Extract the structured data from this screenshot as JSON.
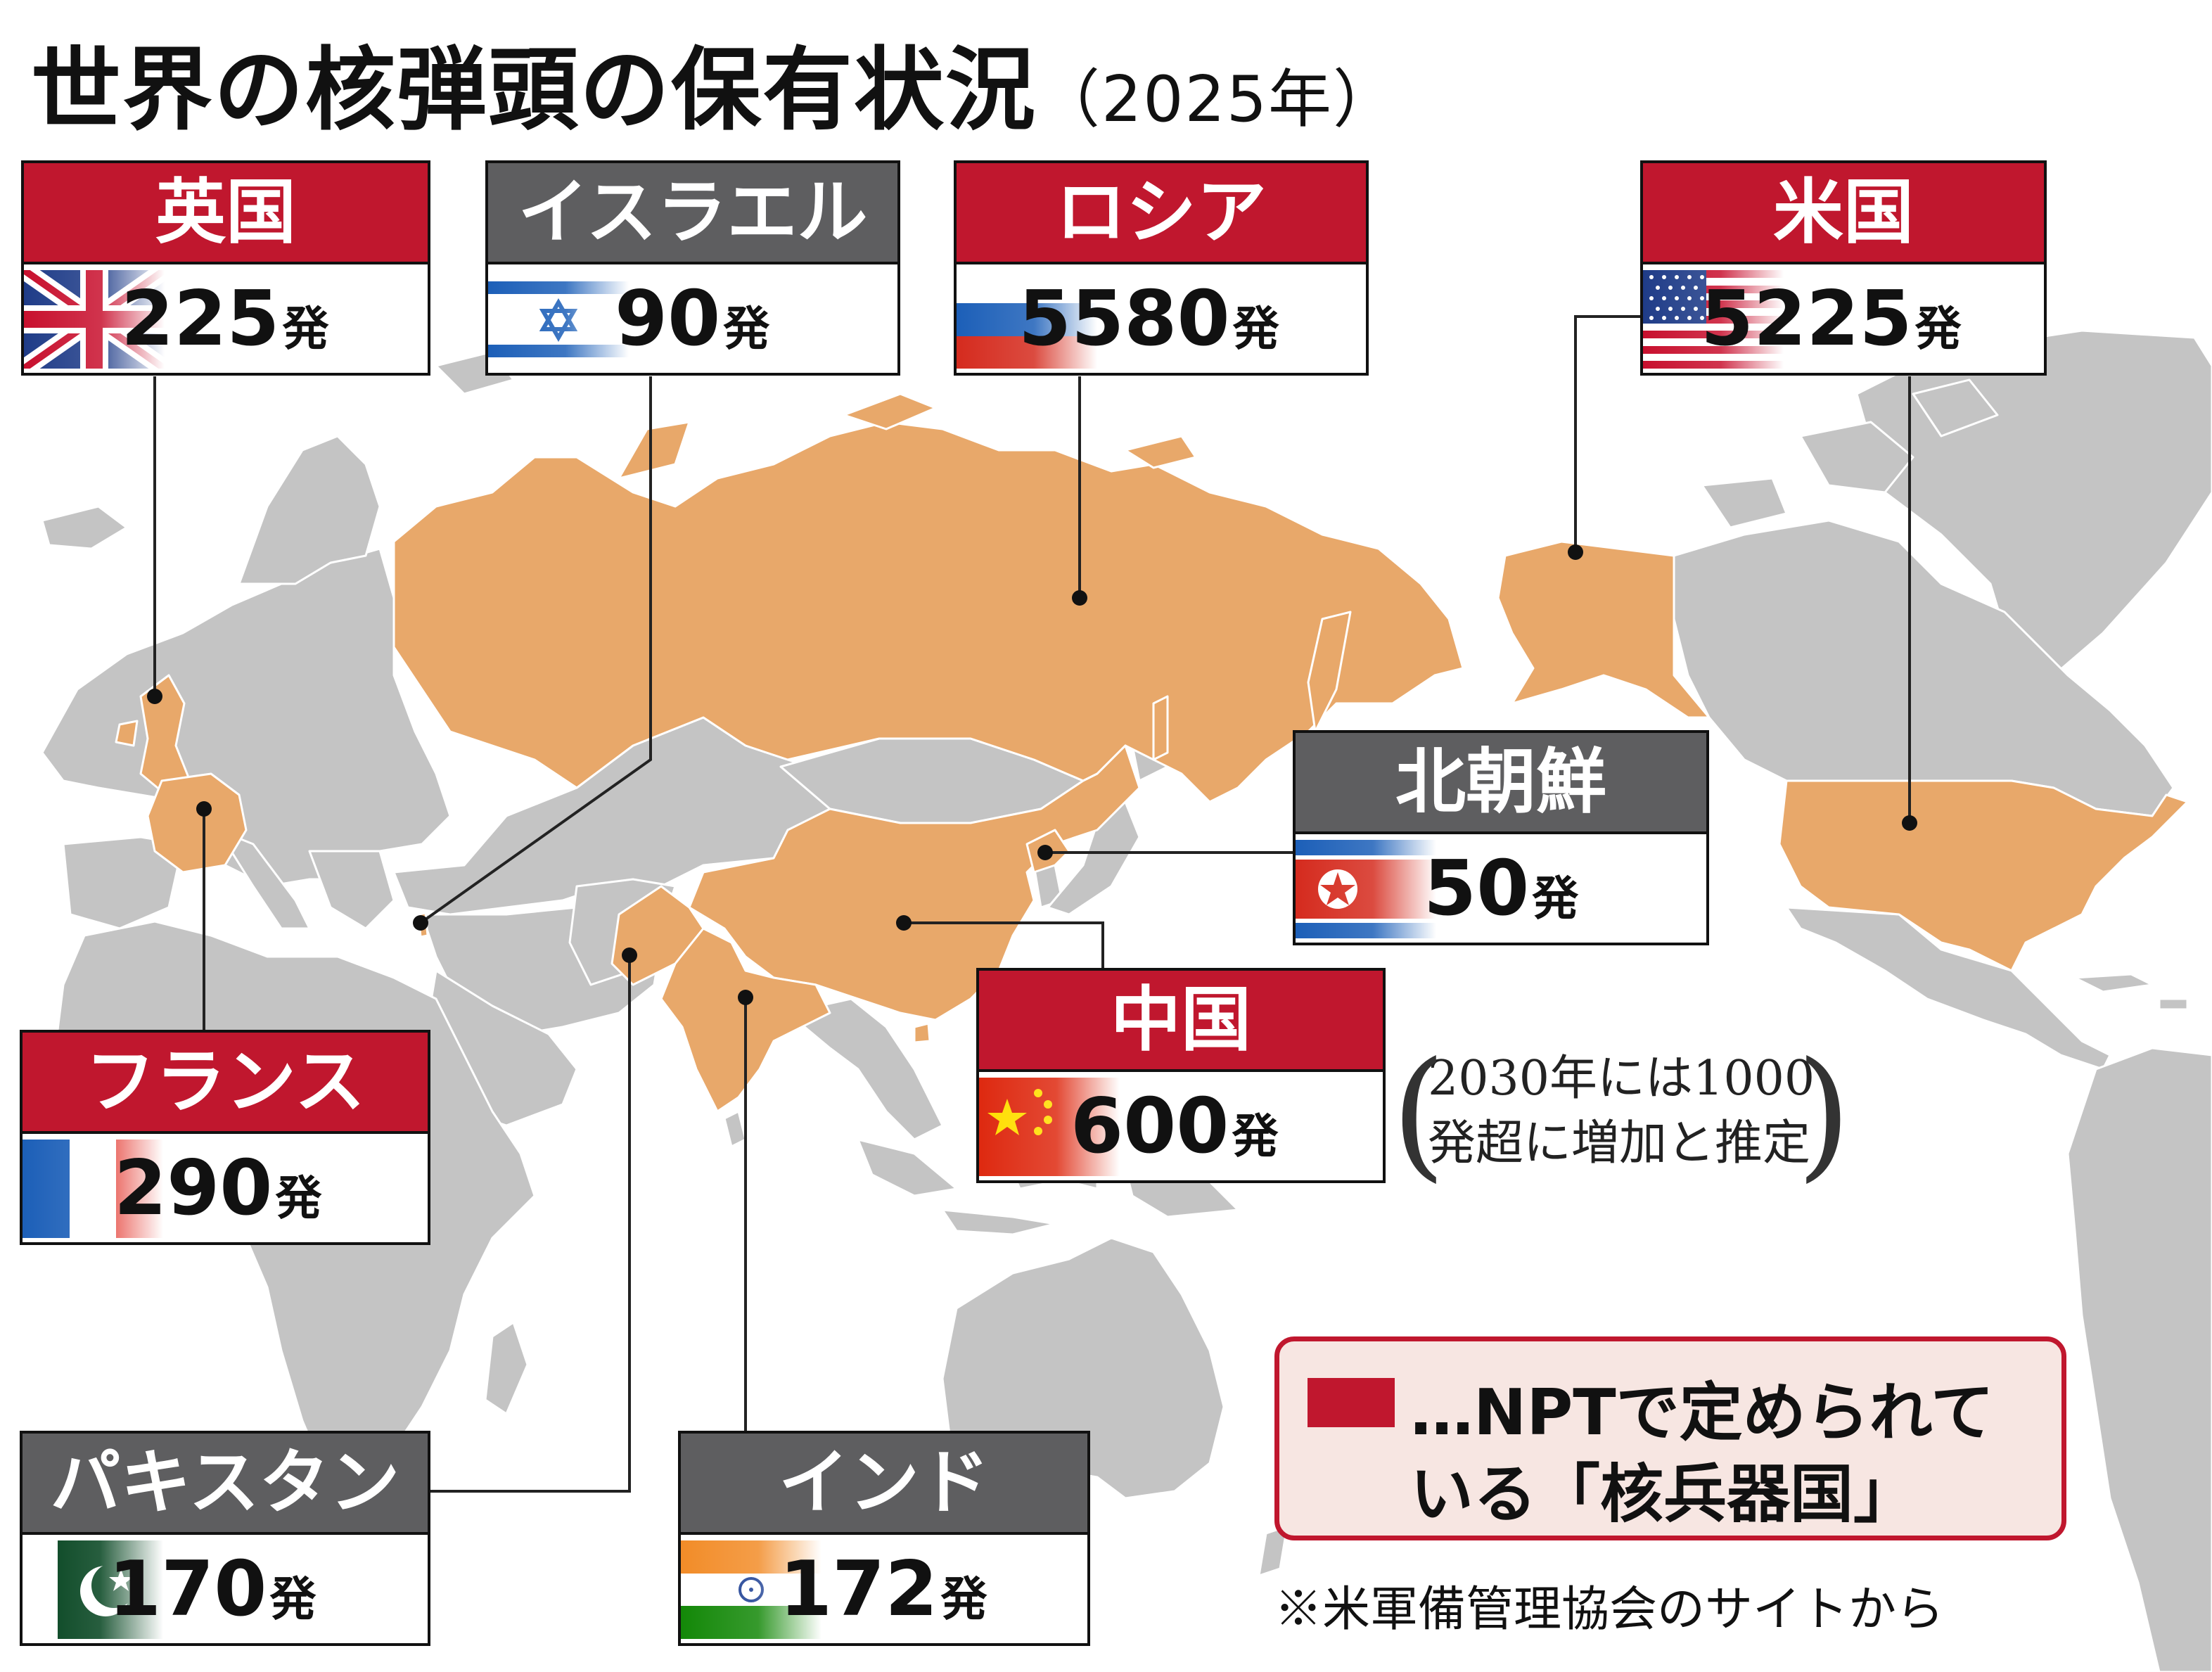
{
  "title": {
    "main": "世界の核弾頭の保有状況",
    "year": "（2025年）"
  },
  "colors": {
    "npt_red": "#c0172e",
    "non_npt_gray": "#5e5e60",
    "nuclear_land": "#e8a86a",
    "other_land": "#c4c4c4",
    "border": "#ffffff"
  },
  "countries": {
    "uk": {
      "name": "英国",
      "count": "225",
      "unit": "発",
      "npt": true,
      "flag": "uk-flag-icon"
    },
    "israel": {
      "name": "イスラエル",
      "count": "90",
      "unit": "発",
      "npt": false,
      "flag": "israel-flag-icon"
    },
    "russia": {
      "name": "ロシア",
      "count": "5580",
      "unit": "発",
      "npt": true,
      "flag": "russia-flag-icon"
    },
    "usa": {
      "name": "米国",
      "count": "5225",
      "unit": "発",
      "npt": true,
      "flag": "usa-flag-icon"
    },
    "nkorea": {
      "name": "北朝鮮",
      "count": "50",
      "unit": "発",
      "npt": false,
      "flag": "north-korea-flag-icon"
    },
    "china": {
      "name": "中国",
      "count": "600",
      "unit": "発",
      "npt": true,
      "flag": "china-flag-icon"
    },
    "france": {
      "name": "フランス",
      "count": "290",
      "unit": "発",
      "npt": true,
      "flag": "france-flag-icon"
    },
    "pakistan": {
      "name": "パキスタン",
      "count": "170",
      "unit": "発",
      "npt": false,
      "flag": "pakistan-flag-icon"
    },
    "india": {
      "name": "インド",
      "count": "172",
      "unit": "発",
      "npt": false,
      "flag": "india-flag-icon"
    }
  },
  "china_note": {
    "line1": "2030年には1000",
    "line2": "発超に増加と推定"
  },
  "legend": {
    "line1": "…NPTで定められて",
    "line2": "いる「核兵器国」"
  },
  "source": "※米軍備管理協会のサイトから"
}
